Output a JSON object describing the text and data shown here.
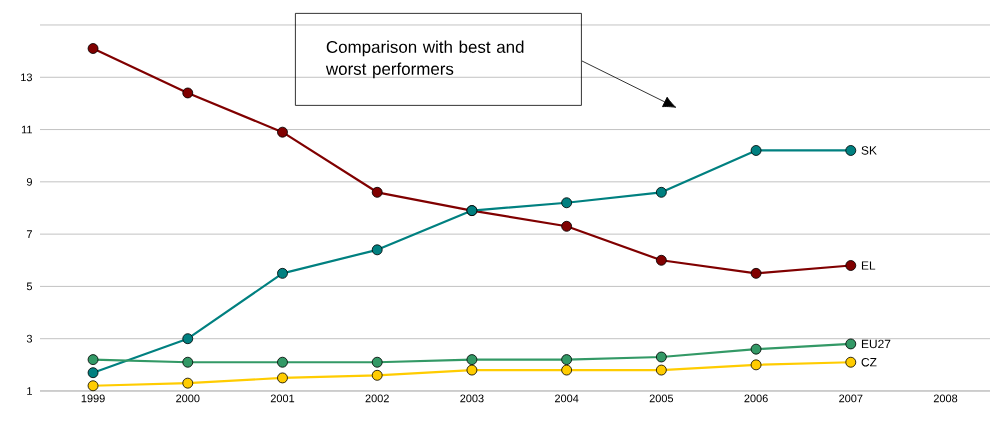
{
  "chart_data": {
    "type": "line",
    "categories": [
      "1999",
      "2000",
      "2001",
      "2002",
      "2003",
      "2004",
      "2005",
      "2006",
      "2007",
      "2008"
    ],
    "series": [
      {
        "name": "EL",
        "color": "#800000",
        "values": [
          14.1,
          12.4,
          10.9,
          8.6,
          7.9,
          7.3,
          6.0,
          5.5,
          5.8,
          null
        ]
      },
      {
        "name": "SK",
        "color": "#008080",
        "values": [
          1.7,
          3.0,
          5.5,
          6.4,
          7.9,
          8.2,
          8.6,
          10.2,
          10.2,
          null
        ]
      },
      {
        "name": "EU27",
        "color": "#339966",
        "values": [
          2.2,
          2.1,
          2.1,
          2.1,
          2.2,
          2.2,
          2.3,
          2.6,
          2.8,
          null
        ]
      },
      {
        "name": "CZ",
        "color": "#ffcc00",
        "values": [
          1.2,
          1.3,
          1.5,
          1.6,
          1.8,
          1.8,
          1.8,
          2.0,
          2.1,
          null
        ]
      }
    ],
    "ylim": [
      1,
      15
    ],
    "yticks": [
      1,
      3,
      5,
      7,
      9,
      11,
      13,
      {
        "value": 15,
        "label": null
      }
    ],
    "grid": "y",
    "marker": "circle",
    "line_style": "solid",
    "legend": false,
    "annotations": [
      "Comparison with best and worst performers"
    ]
  }
}
